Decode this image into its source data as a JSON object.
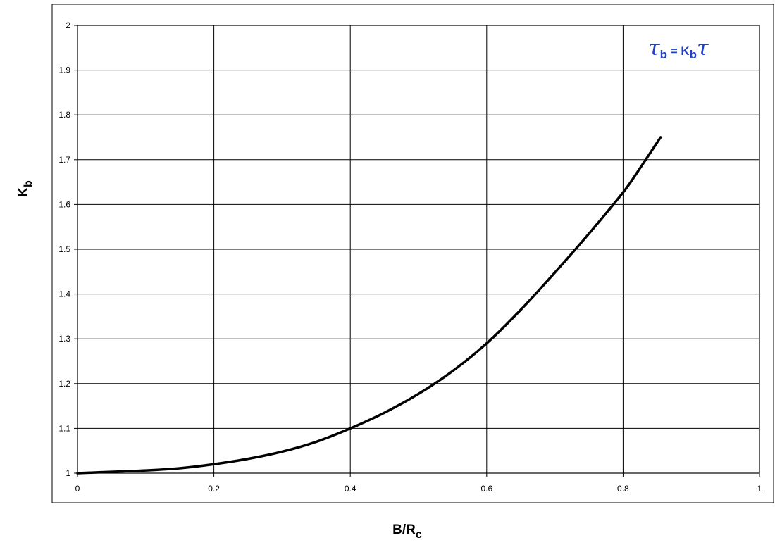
{
  "chart_data": {
    "type": "line",
    "xlabel": {
      "main": "B/R",
      "sub": "c"
    },
    "ylabel": {
      "main": "K",
      "sub": "b"
    },
    "annotation": {
      "lhs_symbol": "τ",
      "lhs_sub": "b",
      "equals": " = K",
      "k_sub": "b",
      "rhs_symbol": "τ"
    },
    "xlim": [
      0,
      1
    ],
    "ylim": [
      1,
      2
    ],
    "x_ticks": [
      "0",
      "0.2",
      "0.4",
      "0.6",
      "0.8",
      "1"
    ],
    "y_ticks": [
      "1",
      "1.1",
      "1.2",
      "1.3",
      "1.4",
      "1.5",
      "1.6",
      "1.7",
      "1.8",
      "1.9",
      "2"
    ],
    "grid": true,
    "series": [
      {
        "x": [
          0,
          0.05,
          0.1,
          0.15,
          0.2,
          0.25,
          0.3,
          0.35,
          0.4,
          0.45,
          0.5,
          0.55,
          0.6,
          0.65,
          0.7,
          0.75,
          0.8,
          0.82,
          0.855
        ],
        "y": [
          1.0,
          1.003,
          1.006,
          1.011,
          1.02,
          1.032,
          1.048,
          1.07,
          1.1,
          1.135,
          1.177,
          1.228,
          1.29,
          1.365,
          1.448,
          1.535,
          1.627,
          1.67,
          1.75
        ],
        "color": "#000000"
      }
    ]
  }
}
